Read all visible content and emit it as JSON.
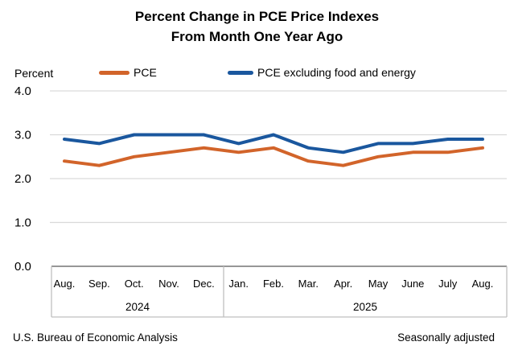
{
  "title": {
    "line1": "Percent Change in PCE Price Indexes",
    "line2": "From Month One Year Ago"
  },
  "axis_unit_label": "Percent",
  "footer": {
    "left": "U.S. Bureau of Economic Analysis",
    "right": "Seasonally adjusted"
  },
  "colors": {
    "pce_line": "#D2642A",
    "core_line": "#1A579E",
    "gridline": "#D9D9D9",
    "zero_axis": "#595959",
    "category_box": "#BFBFBF",
    "text": "#000000"
  },
  "chart_data": {
    "type": "line",
    "title": "Percent Change in PCE Price Indexes",
    "subtitle": "From Month One Year Ago",
    "ylabel": "Percent",
    "ylim": [
      0.0,
      4.0
    ],
    "yticks": [
      "0.0",
      "1.0",
      "2.0",
      "3.0",
      "4.0"
    ],
    "grid": true,
    "legend_position": "top",
    "categories": [
      "Aug.",
      "Sep.",
      "Oct.",
      "Nov.",
      "Dec.",
      "Jan.",
      "Feb.",
      "Mar.",
      "Apr.",
      "May",
      "June",
      "July",
      "Aug."
    ],
    "year_groups": [
      {
        "label": "2024",
        "start_index": 0,
        "end_index": 4
      },
      {
        "label": "2025",
        "start_index": 5,
        "end_index": 12
      }
    ],
    "series": [
      {
        "name": "PCE",
        "color": "#D2642A",
        "values": [
          2.4,
          2.3,
          2.5,
          2.6,
          2.7,
          2.6,
          2.7,
          2.4,
          2.3,
          2.5,
          2.6,
          2.6,
          2.7
        ]
      },
      {
        "name": "PCE excluding food and energy",
        "color": "#1A579E",
        "values": [
          2.9,
          2.8,
          3.0,
          3.0,
          3.0,
          2.8,
          3.0,
          2.7,
          2.6,
          2.8,
          2.8,
          2.9,
          2.9
        ]
      }
    ],
    "footer_left": "U.S. Bureau of Economic Analysis",
    "footer_right": "Seasonally adjusted"
  }
}
